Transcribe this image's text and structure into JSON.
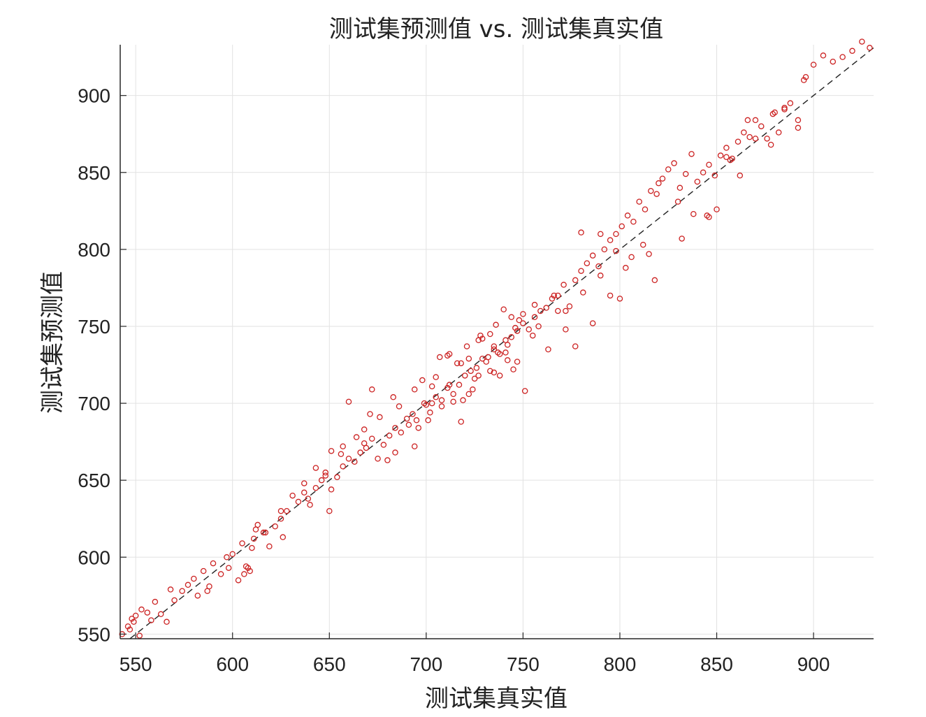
{
  "chart_data": {
    "type": "scatter",
    "title": "测试集预测值 vs. 测试集真实值",
    "xlabel": "测试集真实值",
    "ylabel": "测试集预测值",
    "xlim": [
      542,
      931
    ],
    "ylim": [
      547,
      933
    ],
    "xticks": [
      550,
      600,
      650,
      700,
      750,
      800,
      850,
      900
    ],
    "yticks": [
      550,
      600,
      650,
      700,
      750,
      800,
      850,
      900
    ],
    "xtick_labels": [
      "550",
      "600",
      "650",
      "700",
      "750",
      "800",
      "850",
      "900"
    ],
    "ytick_labels": [
      "550",
      "600",
      "650",
      "700",
      "750",
      "800",
      "850",
      "900"
    ],
    "grid": true,
    "marker_color": "#cc2222",
    "reference_line": {
      "style": "dashed",
      "color": "#222222",
      "x": [
        547,
        931
      ],
      "y": [
        547,
        931
      ]
    },
    "points": {
      "x": [
        543,
        546,
        547,
        548,
        549,
        550,
        552,
        553,
        556,
        558,
        560,
        563,
        566,
        568,
        570,
        574,
        577,
        580,
        582,
        585,
        587,
        590,
        594,
        597,
        600,
        603,
        605,
        607,
        609,
        611,
        613,
        616,
        619,
        622,
        625,
        628,
        631,
        634,
        637,
        640,
        643,
        646,
        648,
        651,
        654,
        657,
        660,
        663,
        666,
        669,
        672,
        675,
        678,
        681,
        684,
        687,
        690,
        693,
        696,
        699,
        702,
        705,
        708,
        711,
        714,
        717,
        720,
        723,
        726,
        729,
        732,
        735,
        738,
        741,
        744,
        747,
        750,
        753,
        756,
        759,
        762,
        765,
        768,
        771,
        774,
        777,
        780,
        783,
        786,
        789,
        792,
        795,
        798,
        801,
        804,
        807,
        810,
        813,
        816,
        819,
        822,
        825,
        828,
        831,
        834,
        837,
        840,
        843,
        846,
        849,
        852,
        855,
        858,
        861,
        864,
        867,
        870,
        873,
        876,
        879,
        882,
        885,
        888,
        892,
        896,
        900,
        905,
        910,
        915,
        920,
        925,
        929,
        606,
        608,
        610,
        617,
        626,
        639,
        650,
        668,
        680,
        691,
        700,
        708,
        716,
        722,
        728,
        735,
        742,
        750,
        758,
        766,
        772,
        780,
        790,
        798,
        803,
        812,
        820,
        830,
        845,
        857,
        870,
        885,
        660,
        672,
        684,
        695,
        703,
        712,
        722,
        735,
        745,
        755,
        768,
        777,
        786,
        795,
        806,
        818,
        838,
        850,
        862,
        878,
        892,
        588,
        598,
        612,
        625,
        637,
        648,
        656,
        664,
        671,
        683,
        694,
        705,
        712,
        718,
        727,
        733,
        741,
        748,
        756,
        763,
        772,
        781,
        790,
        800,
        815,
        832,
        846,
        855,
        866,
        880,
        895,
        703,
        718,
        727,
        738,
        746,
        731,
        724,
        714,
        707,
        698,
        721,
        736,
        744,
        751,
        729,
        737,
        742,
        725,
        733,
        711,
        719,
        740,
        747,
        701,
        694,
        686,
        676,
        668,
        657,
        651,
        643
      ],
      "y": [
        550,
        555,
        553,
        560,
        558,
        562,
        549,
        566,
        564,
        559,
        571,
        563,
        558,
        579,
        572,
        578,
        582,
        586,
        575,
        591,
        578,
        596,
        589,
        600,
        602,
        585,
        609,
        594,
        591,
        612,
        621,
        616,
        607,
        620,
        625,
        630,
        640,
        636,
        642,
        634,
        645,
        650,
        655,
        644,
        652,
        659,
        664,
        662,
        668,
        671,
        677,
        664,
        673,
        679,
        668,
        681,
        690,
        693,
        684,
        700,
        694,
        704,
        698,
        710,
        706,
        712,
        718,
        721,
        723,
        729,
        730,
        737,
        732,
        741,
        743,
        747,
        752,
        748,
        756,
        760,
        762,
        768,
        770,
        777,
        763,
        780,
        786,
        791,
        796,
        789,
        800,
        806,
        810,
        815,
        822,
        818,
        831,
        826,
        838,
        836,
        846,
        852,
        856,
        840,
        849,
        862,
        844,
        850,
        855,
        848,
        861,
        866,
        859,
        870,
        876,
        873,
        884,
        880,
        872,
        888,
        876,
        891,
        895,
        884,
        912,
        920,
        926,
        922,
        925,
        929,
        935,
        931,
        589,
        593,
        606,
        616,
        613,
        638,
        630,
        674,
        663,
        686,
        699,
        702,
        726,
        706,
        744,
        720,
        738,
        758,
        750,
        770,
        760,
        811,
        810,
        799,
        788,
        803,
        843,
        831,
        822,
        858,
        872,
        892,
        701,
        709,
        684,
        689,
        700,
        712,
        729,
        735,
        722,
        744,
        760,
        737,
        752,
        770,
        795,
        780,
        823,
        826,
        848,
        868,
        879,
        581,
        593,
        618,
        630,
        648,
        653,
        667,
        678,
        693,
        704,
        672,
        717,
        732,
        688,
        718,
        745,
        733,
        754,
        764,
        735,
        748,
        772,
        783,
        768,
        797,
        807,
        821,
        860,
        884,
        889,
        910,
        711,
        726,
        741,
        718,
        749,
        727,
        709,
        701,
        730,
        715,
        737,
        751,
        756,
        708,
        742,
        733,
        728,
        716,
        721,
        731,
        702,
        761,
        727,
        689,
        709,
        698,
        691,
        683,
        672,
        669,
        658
      ]
    }
  }
}
